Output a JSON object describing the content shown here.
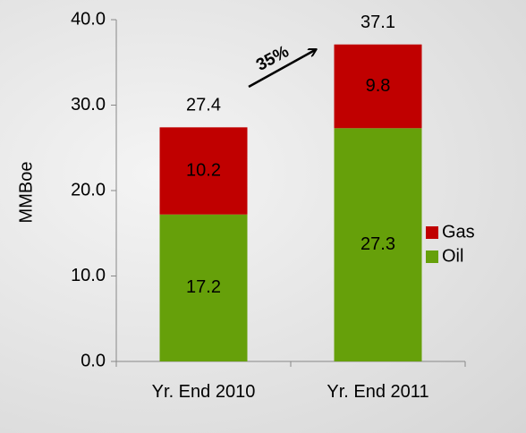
{
  "chart_data": {
    "type": "stacked_bar",
    "y_axis_label": "MMBoe",
    "categories": [
      "Yr. End 2010",
      "Yr. End 2011"
    ],
    "series": [
      {
        "name": "Oil",
        "color": "#66a00a",
        "values": [
          17.2,
          27.3
        ]
      },
      {
        "name": "Gas",
        "color": "#c00000",
        "values": [
          10.2,
          9.8
        ]
      }
    ],
    "totals": [
      27.4,
      37.1
    ],
    "annotation": "35%",
    "ylim": [
      0,
      40
    ],
    "yticks": [
      {
        "value": 0,
        "label": "0.0"
      },
      {
        "value": 10,
        "label": "10.0"
      },
      {
        "value": 20,
        "label": "20.0"
      },
      {
        "value": 30,
        "label": "30.0"
      },
      {
        "value": 40,
        "label": "40.0"
      }
    ],
    "legend": "right"
  }
}
